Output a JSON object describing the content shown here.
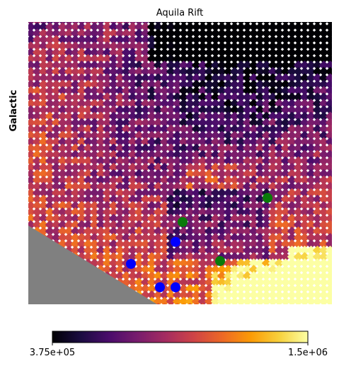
{
  "chart_data": {
    "type": "map",
    "title": "Aquila Rift",
    "ylabel": "Galactic",
    "colorbar": {
      "cmap": [
        "#000004",
        "#1b0c41",
        "#4a0c6b",
        "#781c6d",
        "#a52c60",
        "#cf4446",
        "#ed6925",
        "#fb9b06",
        "#f7d13d",
        "#fcffa4"
      ],
      "lim": [
        375000,
        1500000
      ],
      "ticks": [
        {
          "value": 375000,
          "label": "3.75e+05"
        },
        {
          "value": 1500000,
          "label": "1.5e+06"
        }
      ]
    }
  }
}
